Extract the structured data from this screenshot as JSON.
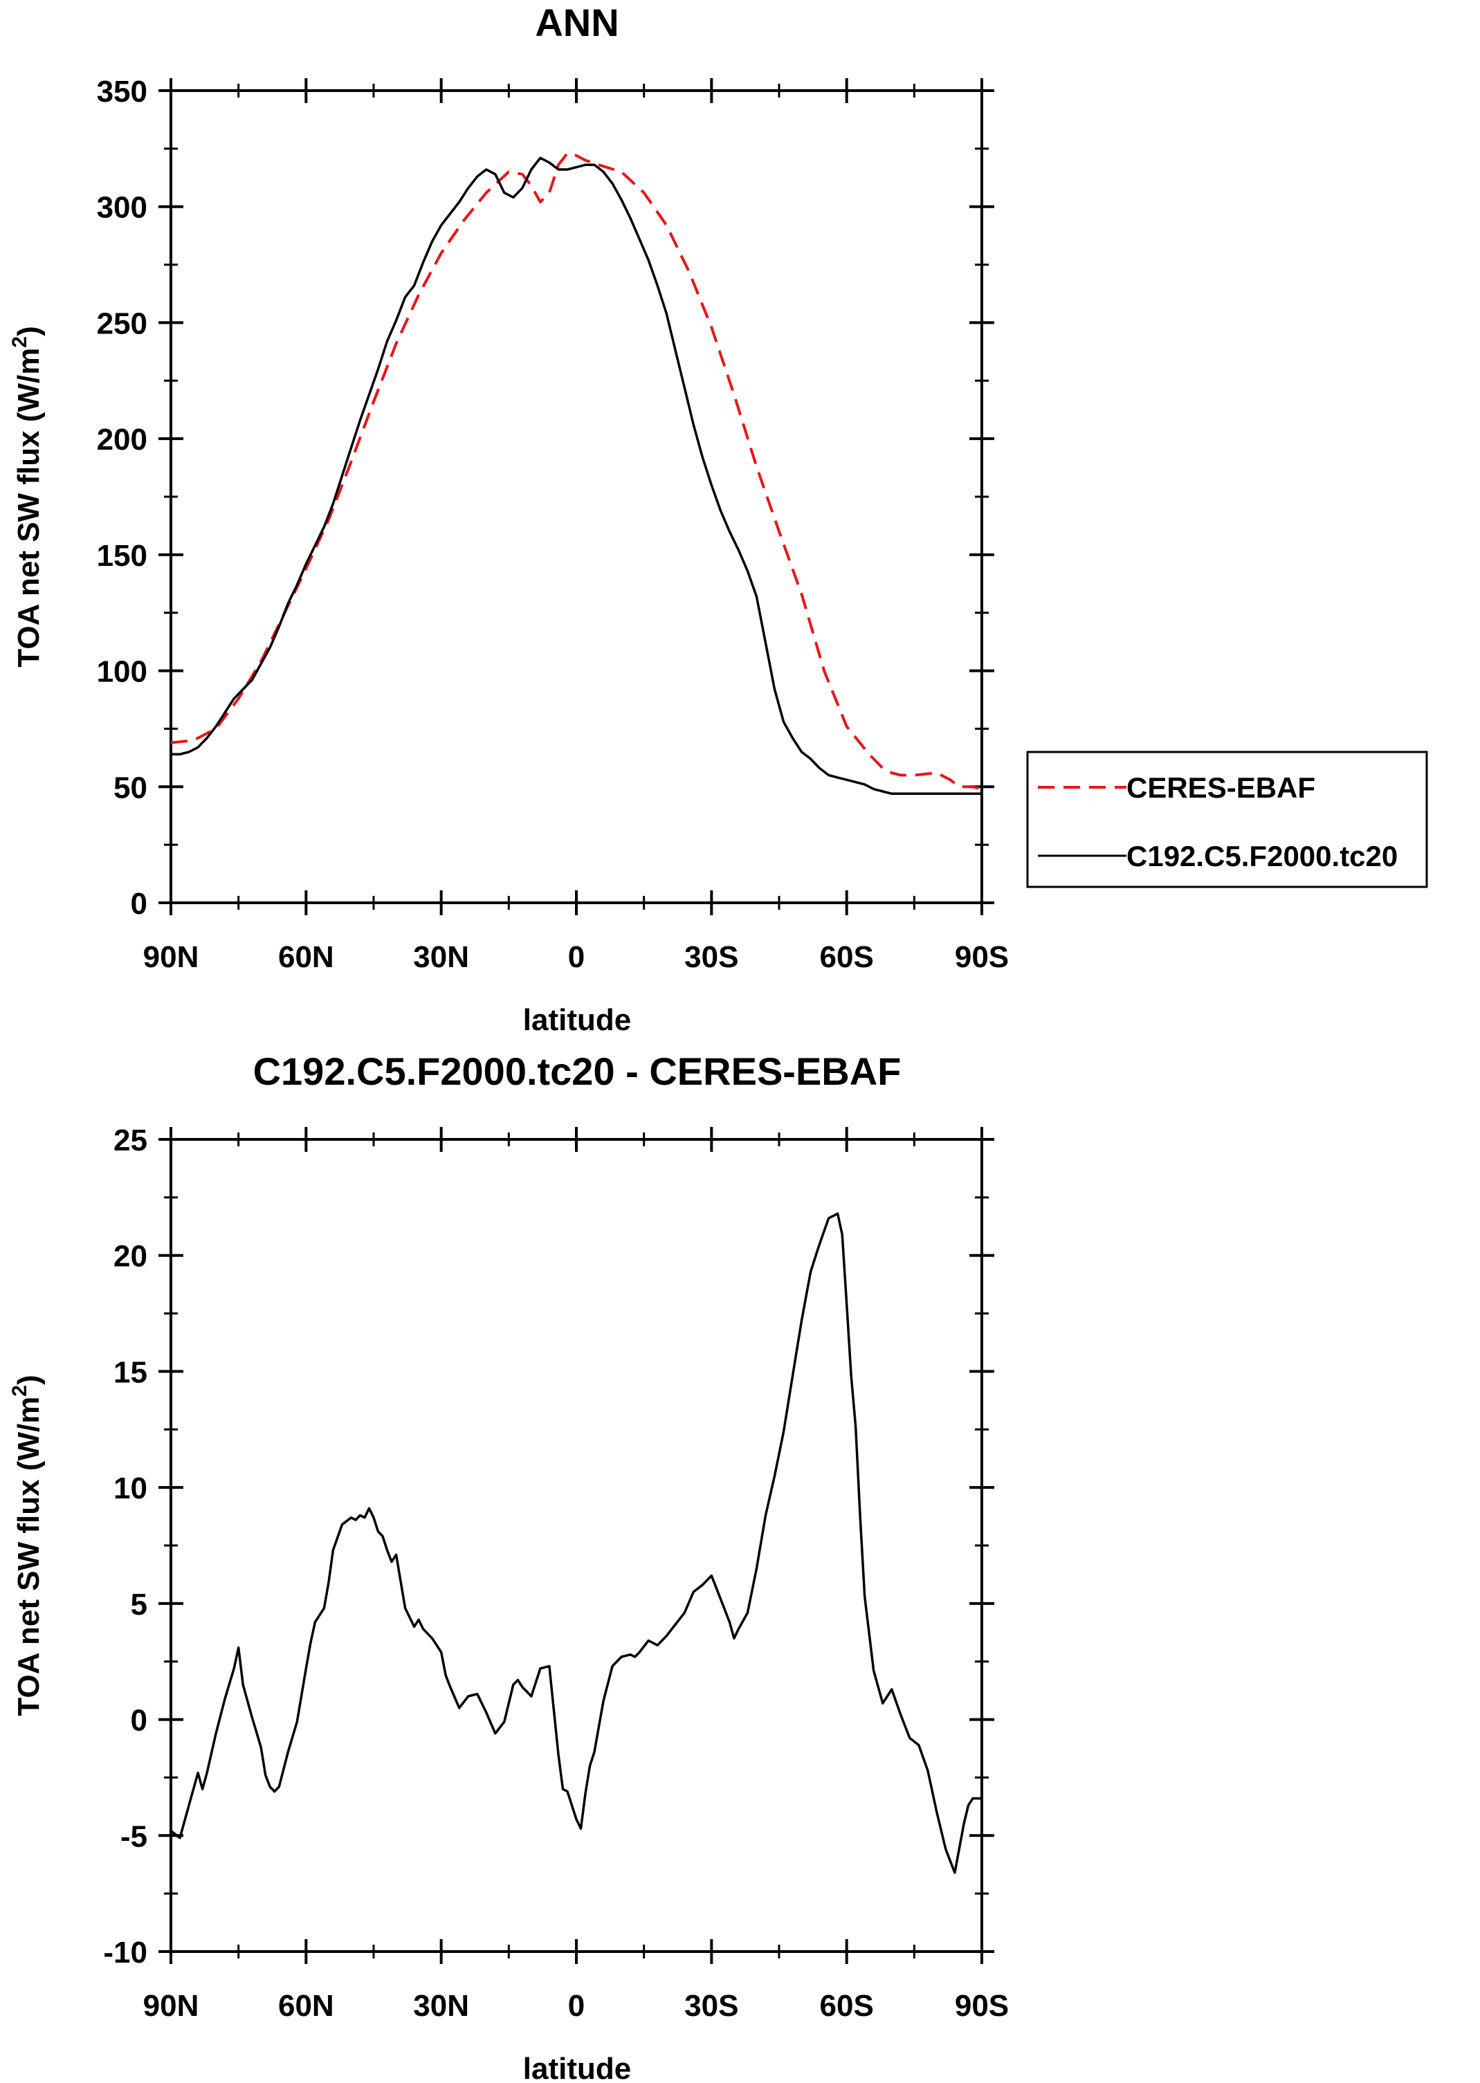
{
  "chart_data": [
    {
      "type": "line",
      "title": "ANN",
      "xlabel": "latitude",
      "ylabel": "TOA net SW flux (W/m",
      "ylabel_sup": "2",
      "ylabel_close": ")",
      "xlim": [
        90,
        -90
      ],
      "ylim": [
        0,
        350
      ],
      "xticks": [
        90,
        60,
        30,
        0,
        -30,
        -60,
        -90
      ],
      "xtick_labels": [
        "90N",
        "60N",
        "30N",
        "0",
        "30S",
        "60S",
        "90S"
      ],
      "yticks": [
        0,
        50,
        100,
        150,
        200,
        250,
        300,
        350
      ],
      "ytick_labels": [
        "0",
        "50",
        "100",
        "150",
        "200",
        "250",
        "300",
        "350"
      ],
      "grid": false,
      "legend": "outside-right",
      "series": [
        {
          "name": "CERES-EBAF",
          "color": "#e8151b",
          "dash": true,
          "x": [
            90,
            85,
            80,
            75,
            70,
            65,
            60,
            55,
            50,
            45,
            40,
            35,
            30,
            25,
            20,
            15,
            12,
            10,
            8,
            6,
            4,
            2,
            0,
            -2,
            -5,
            -10,
            -15,
            -20,
            -25,
            -30,
            -35,
            -40,
            -45,
            -50,
            -55,
            -60,
            -65,
            -68,
            -70,
            -72,
            -75,
            -80,
            -83,
            -85,
            -88,
            -90
          ],
          "y": [
            69,
            70,
            75,
            88,
            104,
            124,
            144,
            165,
            190,
            216,
            241,
            262,
            280,
            294,
            306,
            315,
            314,
            309,
            302,
            306,
            318,
            323,
            322,
            320,
            318,
            315,
            306,
            292,
            272,
            248,
            219,
            188,
            160,
            133,
            100,
            76,
            64,
            58,
            56,
            55,
            55,
            56,
            53,
            50,
            50,
            49
          ]
        },
        {
          "name": "C192.C5.F2000.tc20",
          "color": "#000000",
          "dash": false,
          "x": [
            90,
            88,
            86,
            84,
            82,
            80,
            78,
            76,
            74,
            72,
            70,
            68,
            66,
            64,
            62,
            60,
            58,
            56,
            54,
            52,
            50,
            48,
            46,
            44,
            42,
            40,
            38,
            36,
            34,
            32,
            30,
            28,
            26,
            24,
            22,
            20,
            18,
            16,
            14,
            12,
            10,
            8,
            6,
            4,
            2,
            0,
            -2,
            -4,
            -6,
            -8,
            -10,
            -12,
            -14,
            -16,
            -18,
            -20,
            -22,
            -24,
            -26,
            -28,
            -30,
            -32,
            -34,
            -36,
            -38,
            -40,
            -42,
            -44,
            -46,
            -48,
            -50,
            -52,
            -54,
            -56,
            -58,
            -60,
            -62,
            -64,
            -66,
            -68,
            -70,
            -72,
            -74,
            -76,
            -78,
            -80,
            -82,
            -84,
            -86,
            -88,
            -90
          ],
          "y": [
            64,
            64,
            65,
            67,
            71,
            76,
            82,
            88,
            92,
            96,
            103,
            110,
            119,
            129,
            137,
            146,
            154,
            162,
            172,
            184,
            196,
            208,
            219,
            230,
            242,
            251,
            261,
            266,
            276,
            285,
            292,
            297,
            302,
            308,
            313,
            316,
            314,
            306,
            304,
            308,
            316,
            321,
            319,
            316,
            316,
            317,
            318,
            318,
            315,
            310,
            303,
            295,
            286,
            277,
            266,
            254,
            238,
            222,
            206,
            192,
            180,
            169,
            160,
            152,
            143,
            132,
            112,
            92,
            78,
            71,
            65,
            62,
            58,
            55,
            54,
            53,
            52,
            51,
            49,
            48,
            47,
            47,
            47,
            47,
            47,
            47,
            47,
            47,
            47,
            47,
            47
          ]
        }
      ]
    },
    {
      "type": "line",
      "title": "C192.C5.F2000.tc20 - CERES-EBAF",
      "xlabel": "latitude",
      "ylabel": "TOA net SW flux (W/m",
      "ylabel_sup": "2",
      "ylabel_close": ")",
      "xlim": [
        90,
        -90
      ],
      "ylim": [
        -10,
        25
      ],
      "xticks": [
        90,
        60,
        30,
        0,
        -30,
        -60,
        -90
      ],
      "xtick_labels": [
        "90N",
        "60N",
        "30N",
        "0",
        "30S",
        "60S",
        "90S"
      ],
      "yticks": [
        -10,
        -5,
        0,
        5,
        10,
        15,
        20,
        25
      ],
      "ytick_labels": [
        "-10",
        "-5",
        "0",
        "5",
        "10",
        "15",
        "20",
        "25"
      ],
      "grid": false,
      "series": [
        {
          "color": "#000000",
          "dash": false,
          "x": [
            90,
            88,
            86,
            84,
            83,
            82,
            80,
            78,
            76,
            75,
            74,
            72,
            70,
            69,
            68,
            67,
            66,
            64,
            62,
            60,
            59,
            58,
            56,
            55,
            54,
            52,
            50,
            49,
            48,
            47,
            46,
            45,
            44,
            43,
            42,
            41,
            40,
            38,
            36,
            35,
            34,
            32,
            30,
            29,
            28,
            26,
            24,
            22,
            20,
            18,
            16,
            14,
            13,
            12,
            10,
            8,
            6,
            4,
            3,
            2,
            0,
            -1,
            -2,
            -3,
            -4,
            -6,
            -8,
            -10,
            -12,
            -13,
            -14,
            -16,
            -18,
            -20,
            -22,
            -24,
            -26,
            -28,
            -30,
            -32,
            -34,
            -35,
            -36,
            -38,
            -40,
            -42,
            -44,
            -46,
            -48,
            -50,
            -52,
            -54,
            -56,
            -58,
            -59,
            -60,
            -61,
            -62,
            -63,
            -64,
            -66,
            -68,
            -70,
            -72,
            -74,
            -76,
            -78,
            -80,
            -82,
            -84,
            -86,
            -87,
            -88,
            -89,
            -90
          ],
          "y": [
            -4.8,
            -5.1,
            -3.7,
            -2.3,
            -3,
            -2.3,
            -0.6,
            0.9,
            2.2,
            3.1,
            1.5,
            0.1,
            -1.2,
            -2.4,
            -2.9,
            -3.1,
            -2.9,
            -1.4,
            -0.1,
            2.2,
            3.3,
            4.2,
            4.8,
            5.9,
            7.3,
            8.4,
            8.7,
            8.6,
            8.8,
            8.7,
            9.1,
            8.7,
            8.1,
            7.9,
            7.3,
            6.8,
            7.1,
            4.8,
            4,
            4.3,
            3.9,
            3.5,
            2.9,
            1.9,
            1.4,
            0.5,
            1,
            1.1,
            0.3,
            -0.6,
            -0.1,
            1.5,
            1.7,
            1.4,
            1,
            2.2,
            2.3,
            -1.5,
            -3,
            -3.1,
            -4.3,
            -4.7,
            -3.2,
            -2,
            -1.4,
            0.8,
            2.3,
            2.7,
            2.8,
            2.7,
            2.9,
            3.4,
            3.2,
            3.6,
            4.1,
            4.6,
            5.5,
            5.8,
            6.2,
            5.2,
            4.2,
            3.5,
            3.9,
            4.6,
            6.5,
            8.8,
            10.5,
            12.4,
            14.8,
            17.2,
            19.3,
            20.5,
            21.6,
            21.8,
            20.9,
            17.9,
            14.8,
            12.6,
            8.7,
            5.3,
            2.1,
            0.7,
            1.3,
            0.2,
            -0.8,
            -1.1,
            -2.2,
            -4,
            -5.6,
            -6.6,
            -4.5,
            -3.7,
            -3.4,
            -3.4,
            -3.4
          ]
        }
      ]
    }
  ]
}
